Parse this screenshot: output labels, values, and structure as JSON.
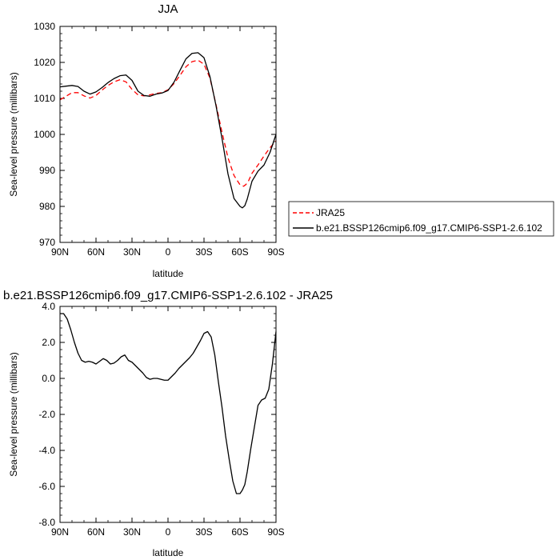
{
  "chart_data": [
    {
      "type": "line",
      "title": "JJA",
      "xlabel": "latitude",
      "ylabel": "Sea-level pressure (millibars)",
      "xlim": [
        90,
        -90
      ],
      "ylim": [
        970,
        1030
      ],
      "x_ticks": [
        "90N",
        "60N",
        "30N",
        "0",
        "30S",
        "60S",
        "90S"
      ],
      "y_ticks": [
        "970",
        "980",
        "990",
        "1000",
        "1010",
        "1020",
        "1030"
      ],
      "legend_placement": "right",
      "series": [
        {
          "name": "JRA25",
          "color": "#ff0000",
          "dash": "dashed",
          "x": [
            90,
            85,
            80,
            75,
            70,
            65,
            60,
            55,
            50,
            45,
            40,
            35,
            30,
            25,
            20,
            15,
            10,
            5,
            0,
            -5,
            -10,
            -15,
            -20,
            -25,
            -30,
            -35,
            -40,
            -45,
            -50,
            -55,
            -60,
            -63,
            -65,
            -67,
            -70,
            -75,
            -80,
            -85,
            -90
          ],
          "y": [
            1009.6,
            1010.6,
            1011.6,
            1011.6,
            1010.7,
            1010.1,
            1010.8,
            1012.3,
            1013.6,
            1014.6,
            1015.2,
            1014.6,
            1012.5,
            1011.0,
            1010.7,
            1011.0,
            1011.4,
            1011.6,
            1012.4,
            1014.1,
            1016.4,
            1018.8,
            1020.2,
            1020.6,
            1019.5,
            1015.6,
            1008.3,
            1000.6,
            993.5,
            988.6,
            986.0,
            985.6,
            986.1,
            987.0,
            989.2,
            991.5,
            994.0,
            996.3,
            998.2
          ]
        },
        {
          "name": "b.e21.BSSP126cmip6.f09_g17.CMIP6-SSP1-2.6.102",
          "color": "#000000",
          "dash": "solid",
          "x": [
            90,
            85,
            80,
            75,
            70,
            65,
            60,
            55,
            50,
            45,
            40,
            35,
            30,
            25,
            20,
            15,
            10,
            5,
            0,
            -5,
            -10,
            -15,
            -20,
            -25,
            -30,
            -35,
            -40,
            -45,
            -50,
            -55,
            -60,
            -62,
            -64,
            -66,
            -68,
            -70,
            -75,
            -80,
            -85,
            -90
          ],
          "y": [
            1013.2,
            1013.4,
            1013.6,
            1013.3,
            1012.0,
            1011.2,
            1011.8,
            1013.0,
            1014.4,
            1015.5,
            1016.3,
            1016.5,
            1015.0,
            1012.0,
            1010.8,
            1010.6,
            1011.2,
            1011.5,
            1012.2,
            1014.5,
            1017.8,
            1021.0,
            1022.5,
            1022.7,
            1021.3,
            1016.0,
            1008.0,
            998.9,
            989.0,
            982.2,
            980.0,
            979.6,
            980.2,
            982.0,
            984.5,
            987.0,
            989.8,
            991.5,
            995.0,
            1000.0
          ]
        }
      ]
    },
    {
      "type": "line",
      "title": "b.e21.BSSP126cmip6.f09_g17.CMIP6-SSP1-2.6.102 - JRA25",
      "xlabel": "latitude",
      "ylabel": "Sea-level pressure (millibars)",
      "xlim": [
        90,
        -90
      ],
      "ylim": [
        -8.0,
        4.0
      ],
      "x_ticks": [
        "90N",
        "60N",
        "30N",
        "0",
        "30S",
        "60S",
        "90S"
      ],
      "y_ticks": [
        "-8.0",
        "-6.0",
        "-4.0",
        "-2.0",
        "0.0",
        "2.0",
        "4.0"
      ],
      "series": [
        {
          "color": "#000000",
          "dash": "solid",
          "x": [
            90,
            87,
            84,
            81,
            78,
            75,
            72,
            69,
            66,
            63,
            60,
            57,
            54,
            51,
            48,
            45,
            42,
            39,
            36,
            33,
            30,
            27,
            24,
            21,
            18,
            15,
            12,
            9,
            6,
            3,
            0,
            -3,
            -6,
            -9,
            -12,
            -15,
            -18,
            -21,
            -24,
            -27,
            -30,
            -33,
            -36,
            -39,
            -42,
            -45,
            -48,
            -51,
            -54,
            -57,
            -60,
            -62,
            -64,
            -66,
            -69,
            -72,
            -75,
            -78,
            -81,
            -84,
            -87,
            -90
          ],
          "y": [
            3.6,
            3.6,
            3.3,
            2.7,
            2.0,
            1.4,
            1.0,
            0.9,
            0.95,
            0.9,
            0.8,
            0.95,
            1.1,
            1.0,
            0.8,
            0.85,
            1.0,
            1.2,
            1.3,
            1.0,
            0.9,
            0.7,
            0.5,
            0.3,
            0.05,
            -0.05,
            0.0,
            0.0,
            -0.05,
            -0.1,
            -0.1,
            0.1,
            0.3,
            0.55,
            0.75,
            0.95,
            1.15,
            1.4,
            1.75,
            2.1,
            2.5,
            2.6,
            2.3,
            1.3,
            -0.2,
            -1.6,
            -3.2,
            -4.5,
            -5.7,
            -6.4,
            -6.4,
            -6.2,
            -5.9,
            -5.2,
            -3.9,
            -2.7,
            -1.5,
            -1.2,
            -1.1,
            -0.6,
            0.8,
            2.6
          ]
        }
      ]
    }
  ]
}
